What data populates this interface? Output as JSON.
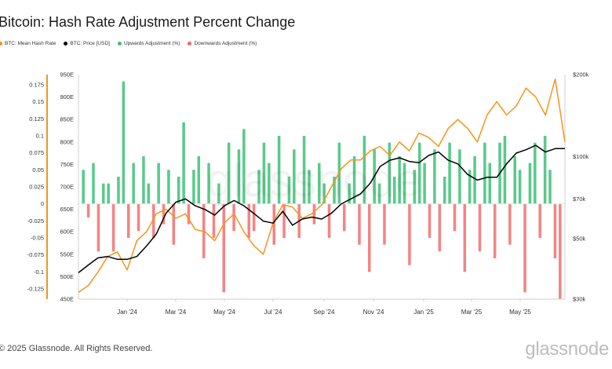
{
  "chart_data": {
    "type": "bar+line",
    "title": "Bitcoin: Hash Rate Adjustment Percent Change",
    "legend": [
      {
        "label": "BTC: Mean Hash Rate",
        "color": "#f7931a"
      },
      {
        "label": "BTC: Price [USD]",
        "color": "#000000"
      },
      {
        "label": "Upwards Adjustment (%)",
        "color": "#3dbf77"
      },
      {
        "label": "Downwards Adjustment (%)",
        "color": "#f06565"
      }
    ],
    "x_ticks": [
      "Jan '24",
      "Mar '24",
      "May '24",
      "Jul '24",
      "Sep '24",
      "Nov '24",
      "Jan '25",
      "Mar '25",
      "May '25"
    ],
    "x_range": [
      "2023-11-25",
      "2025-06-28"
    ],
    "left_axis_adjustment": {
      "ticks": [
        "0.175",
        "0.15",
        "0.125",
        "0.1",
        "0.075",
        "0.05",
        "0.025",
        "0",
        "-0.025",
        "-0.05",
        "-0.075",
        "-0.1",
        "-0.125"
      ],
      "range": [
        -0.14,
        0.19
      ]
    },
    "left_axis_hash_rate": {
      "ticks": [
        "950E",
        "900E",
        "850E",
        "800E",
        "750E",
        "700E",
        "650E",
        "600E",
        "550E",
        "500E",
        "450E"
      ],
      "range": [
        450,
        950
      ]
    },
    "right_axis_price": {
      "ticks": [
        "$200k",
        "$100k",
        "$70k",
        "$50k",
        "$30k"
      ],
      "values": [
        200000,
        100000,
        70000,
        50000,
        30000
      ],
      "scale": "log"
    },
    "series": [
      {
        "name": "BTC: Mean Hash Rate",
        "axis": "hash_rate",
        "t": [
          0,
          0.02,
          0.04,
          0.06,
          0.08,
          0.1,
          0.12,
          0.14,
          0.16,
          0.18,
          0.2,
          0.22,
          0.24,
          0.26,
          0.28,
          0.3,
          0.32,
          0.34,
          0.36,
          0.38,
          0.4,
          0.42,
          0.44,
          0.46,
          0.48,
          0.5,
          0.52,
          0.54,
          0.56,
          0.58,
          0.6,
          0.62,
          0.64,
          0.66,
          0.68,
          0.7,
          0.72,
          0.74,
          0.76,
          0.78,
          0.8,
          0.82,
          0.84,
          0.86,
          0.88,
          0.9,
          0.92,
          0.94,
          0.96,
          0.98,
          1.0
        ],
        "values": [
          465,
          480,
          510,
          545,
          555,
          515,
          580,
          600,
          640,
          650,
          630,
          640,
          605,
          600,
          580,
          620,
          640,
          600,
          570,
          550,
          620,
          660,
          655,
          630,
          640,
          660,
          700,
          740,
          760,
          760,
          780,
          790,
          770,
          800,
          780,
          820,
          810,
          790,
          830,
          850,
          830,
          800,
          860,
          890,
          860,
          880,
          920,
          900,
          860,
          940,
          800
        ]
      },
      {
        "name": "BTC: Price [USD]",
        "axis": "price",
        "t": [
          0,
          0.02,
          0.04,
          0.06,
          0.08,
          0.1,
          0.12,
          0.14,
          0.16,
          0.18,
          0.2,
          0.22,
          0.24,
          0.26,
          0.28,
          0.3,
          0.32,
          0.34,
          0.36,
          0.38,
          0.4,
          0.42,
          0.44,
          0.46,
          0.48,
          0.5,
          0.52,
          0.54,
          0.56,
          0.58,
          0.6,
          0.62,
          0.64,
          0.66,
          0.68,
          0.7,
          0.72,
          0.74,
          0.76,
          0.78,
          0.8,
          0.82,
          0.84,
          0.86,
          0.88,
          0.9,
          0.92,
          0.94,
          0.96,
          0.98,
          1.0
        ],
        "values": [
          37500,
          40000,
          42500,
          43000,
          42000,
          42000,
          43000,
          47000,
          52000,
          62000,
          68000,
          70000,
          66000,
          64000,
          61000,
          66000,
          69000,
          66000,
          62000,
          58000,
          57000,
          63000,
          56000,
          59000,
          60000,
          59000,
          62000,
          67000,
          70000,
          73000,
          80000,
          92000,
          97000,
          99000,
          96000,
          95000,
          101000,
          104000,
          97000,
          94000,
          86000,
          82000,
          84000,
          84000,
          94000,
          103000,
          106000,
          110000,
          104000,
          107000,
          107000
        ]
      }
    ],
    "adjustments": {
      "description": "per-epoch difficulty adjustment percent change, positive = upwards, negative = downwards",
      "values": [
        0.05,
        -0.02,
        0.06,
        -0.07,
        0.03,
        0.03,
        -0.07,
        0.04,
        0.18,
        -0.05,
        0.06,
        -0.04,
        0.07,
        0.03,
        -0.05,
        0.06,
        -0.03,
        0.05,
        -0.06,
        0.04,
        0.12,
        -0.03,
        0.05,
        0.07,
        -0.08,
        0.06,
        -0.05,
        0.03,
        -0.13,
        0.09,
        -0.04,
        0.08,
        0.11,
        -0.05,
        -0.04,
        0.05,
        0.09,
        0.06,
        -0.06,
        0.1,
        -0.05,
        0.04,
        0.08,
        -0.05,
        0.1,
        0.05,
        -0.03,
        0.06,
        0.03,
        -0.05,
        0.04,
        0.09,
        -0.04,
        0.03,
        0.07,
        -0.06,
        0.1,
        -0.1,
        0.08,
        0.03,
        -0.06,
        0.09,
        0.04,
        0.07,
        0.06,
        -0.09,
        0.05,
        0.09,
        0.06,
        -0.05,
        0.08,
        -0.07,
        0.04,
        0.09,
        -0.04,
        0.08,
        -0.1,
        0.05,
        0.07,
        -0.07,
        0.09,
        0.06,
        -0.08,
        0.09,
        0.1,
        -0.06,
        0.07,
        0.05,
        -0.13,
        0.06,
        0.09,
        -0.05,
        0.1,
        0.05,
        -0.08,
        -0.14
      ]
    },
    "copyright": "© 2025 Glassnode. All Rights Reserved.",
    "brand": "glassnode",
    "watermark": "glassnode"
  }
}
